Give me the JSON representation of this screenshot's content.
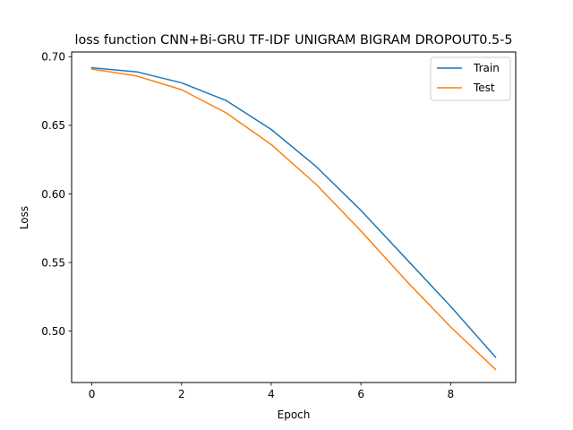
{
  "chart_data": {
    "type": "line",
    "title": "loss function CNN+Bi-GRU TF-IDF UNIGRAM BIGRAM DROPOUT0.5-5",
    "xlabel": "Epoch",
    "ylabel": "Loss",
    "x": [
      0,
      1,
      2,
      3,
      4,
      5,
      6,
      7,
      8,
      9
    ],
    "xlim": [
      -0.45,
      9.45
    ],
    "ylim": [
      0.4625,
      0.7035
    ],
    "xticks": [
      0,
      2,
      4,
      6,
      8
    ],
    "xtick_labels": [
      "0",
      "2",
      "4",
      "6",
      "8"
    ],
    "yticks": [
      0.5,
      0.55,
      0.6,
      0.65,
      0.7
    ],
    "ytick_labels": [
      "0.50",
      "0.55",
      "0.60",
      "0.65",
      "0.70"
    ],
    "grid": false,
    "legend_position": "upper right",
    "series": [
      {
        "name": "Train",
        "color": "#1f77b4",
        "values": [
          0.692,
          0.689,
          0.681,
          0.668,
          0.647,
          0.62,
          0.588,
          0.553,
          0.518,
          0.481
        ]
      },
      {
        "name": "Test",
        "color": "#ff7f0e",
        "values": [
          0.691,
          0.686,
          0.676,
          0.659,
          0.636,
          0.607,
          0.573,
          0.537,
          0.503,
          0.472
        ]
      }
    ]
  }
}
